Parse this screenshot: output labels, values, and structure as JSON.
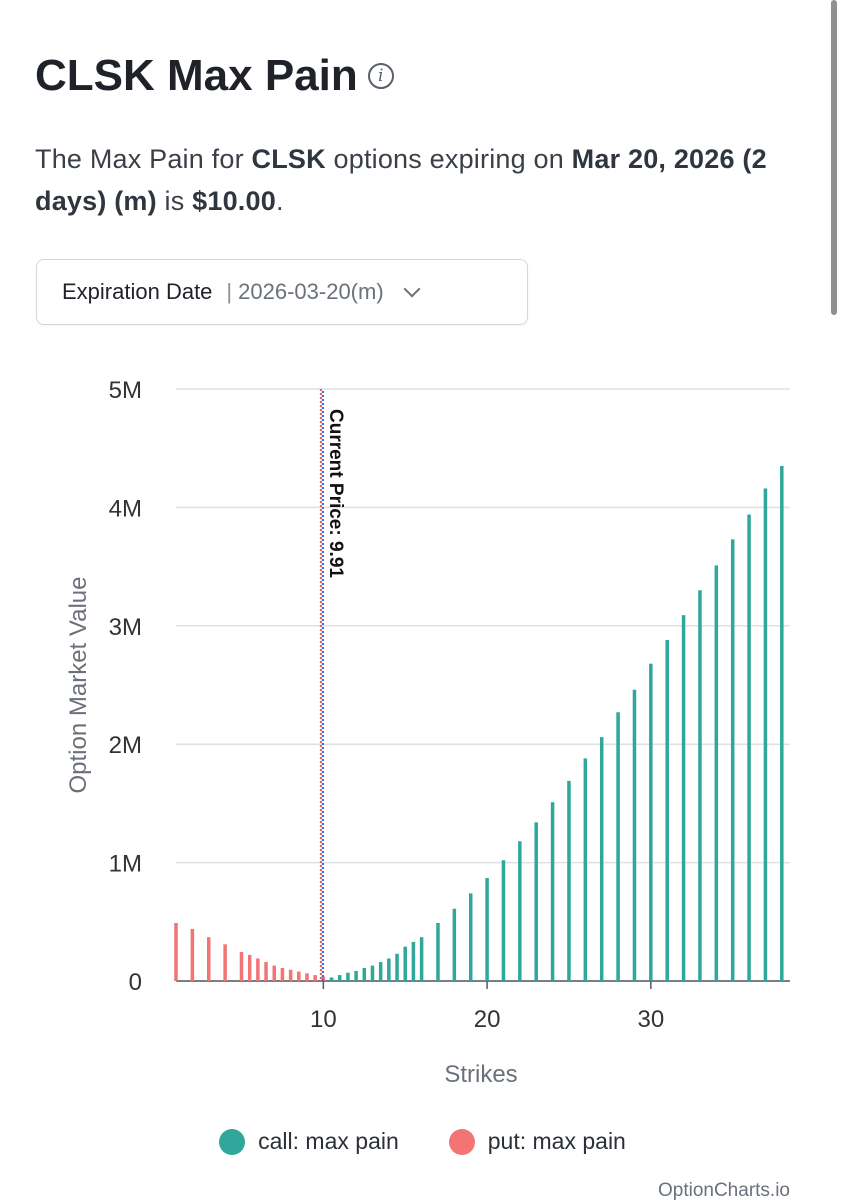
{
  "page": {
    "title": "CLSK Max Pain",
    "info_icon": "info-icon",
    "description": {
      "prefix": "The Max Pain for ",
      "ticker": "CLSK",
      "middle": " options expiring on ",
      "date": "Mar 20, 2026 (2 days) (m)",
      "is": " is ",
      "value": "$10.00",
      "end": "."
    },
    "expiration": {
      "label": "Expiration Date",
      "separator": "|",
      "value": "2026-03-20(m)",
      "icon": "chevron-down-icon"
    },
    "source": "OptionCharts.io"
  },
  "colors": {
    "call": "#2fa89b",
    "put": "#f27475",
    "current_price_line_a": "#e35a5a",
    "current_price_line_b": "#3a5bd9",
    "grid": "#dde0e4",
    "axis_text": "#333333",
    "axis_title": "#6b717a"
  },
  "chart_data": {
    "type": "bar",
    "title": "",
    "xlabel": "Strikes",
    "ylabel": "Option Market Value",
    "xlim": [
      1,
      38.5
    ],
    "ylim": [
      0,
      5000000
    ],
    "x_ticks": [
      10,
      20,
      30
    ],
    "y_ticks": [
      {
        "value": 0,
        "label": "0"
      },
      {
        "value": 1000000,
        "label": "1M"
      },
      {
        "value": 2000000,
        "label": "2M"
      },
      {
        "value": 3000000,
        "label": "3M"
      },
      {
        "value": 4000000,
        "label": "4M"
      },
      {
        "value": 5000000,
        "label": "5M"
      }
    ],
    "current_price": {
      "value": 9.91,
      "label": "Current Price: 9.91"
    },
    "legend_position": "bottom",
    "series": [
      {
        "name": "put: max pain",
        "points": [
          [
            1,
            490000
          ],
          [
            2,
            440000
          ],
          [
            3,
            370000
          ],
          [
            4,
            310000
          ],
          [
            5,
            245000
          ],
          [
            5.5,
            220000
          ],
          [
            6,
            190000
          ],
          [
            6.5,
            160000
          ],
          [
            7,
            130000
          ],
          [
            7.5,
            110000
          ],
          [
            8,
            95000
          ],
          [
            8.5,
            80000
          ],
          [
            9,
            65000
          ],
          [
            9.5,
            50000
          ],
          [
            10,
            38000
          ],
          [
            10.5,
            28000
          ],
          [
            11,
            20000
          ],
          [
            11.5,
            14000
          ],
          [
            12,
            10000
          ],
          [
            12.5,
            7000
          ],
          [
            13,
            5000
          ]
        ]
      },
      {
        "name": "call: max pain",
        "points": [
          [
            10.5,
            30000
          ],
          [
            11,
            50000
          ],
          [
            11.5,
            70000
          ],
          [
            12,
            85000
          ],
          [
            12.5,
            110000
          ],
          [
            13,
            130000
          ],
          [
            13.5,
            160000
          ],
          [
            14,
            190000
          ],
          [
            14.5,
            230000
          ],
          [
            15,
            290000
          ],
          [
            15.5,
            330000
          ],
          [
            16,
            370000
          ],
          [
            17,
            490000
          ],
          [
            18,
            610000
          ],
          [
            19,
            740000
          ],
          [
            20,
            870000
          ],
          [
            21,
            1020000
          ],
          [
            22,
            1180000
          ],
          [
            23,
            1340000
          ],
          [
            24,
            1510000
          ],
          [
            25,
            1690000
          ],
          [
            26,
            1880000
          ],
          [
            27,
            2060000
          ],
          [
            28,
            2270000
          ],
          [
            29,
            2460000
          ],
          [
            30,
            2680000
          ],
          [
            31,
            2880000
          ],
          [
            32,
            3090000
          ],
          [
            33,
            3300000
          ],
          [
            34,
            3510000
          ],
          [
            35,
            3730000
          ],
          [
            36,
            3940000
          ],
          [
            37,
            4160000
          ],
          [
            38,
            4350000
          ]
        ]
      }
    ]
  }
}
